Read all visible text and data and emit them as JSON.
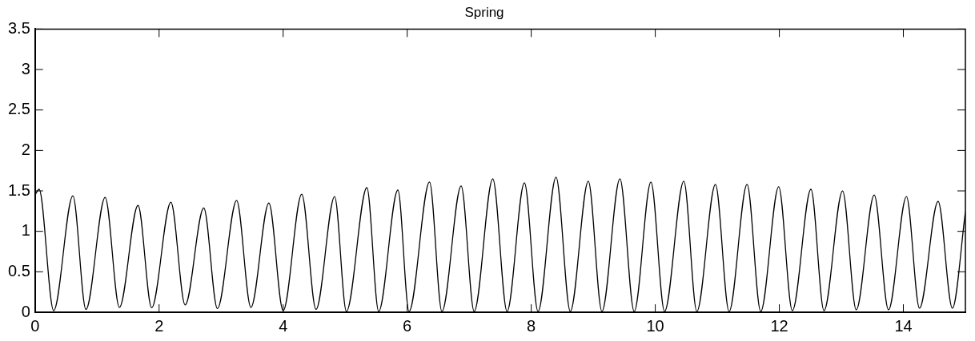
{
  "chart_data": {
    "type": "line",
    "title": "Spring",
    "x": [
      0,
      0.065,
      0.3,
      0.61,
      0.82,
      1.13,
      1.36,
      1.66,
      1.88,
      2.19,
      2.42,
      2.72,
      2.94,
      3.25,
      3.48,
      3.77,
      4.0,
      4.3,
      4.53,
      4.83,
      5.02,
      5.35,
      5.54,
      5.85,
      6.03,
      6.36,
      6.56,
      6.87,
      7.08,
      7.38,
      7.61,
      7.89,
      8.11,
      8.4,
      8.63,
      8.92,
      9.14,
      9.43,
      9.66,
      9.93,
      10.15,
      10.46,
      10.67,
      10.97,
      11.19,
      11.48,
      11.7,
      11.99,
      12.21,
      12.51,
      12.72,
      13.02,
      13.24,
      13.53,
      13.76,
      14.05,
      14.26,
      14.56,
      14.79,
      15
    ],
    "series": [
      {
        "color": "#000000",
        "values": [
          1.45,
          1.52,
          0.02,
          1.44,
          0.035,
          1.42,
          0.06,
          1.32,
          0.056,
          1.36,
          0.09,
          1.29,
          0.046,
          1.38,
          0.06,
          1.35,
          0.02,
          1.46,
          0.035,
          1.43,
          0.01,
          1.54,
          0.01,
          1.51,
          0.01,
          1.61,
          0.01,
          1.56,
          0.01,
          1.65,
          0.01,
          1.6,
          0.01,
          1.67,
          0.01,
          1.62,
          0.01,
          1.65,
          0.01,
          1.61,
          0.01,
          1.62,
          0.01,
          1.58,
          0.01,
          1.58,
          0.01,
          1.55,
          0.02,
          1.52,
          0.02,
          1.5,
          0.03,
          1.45,
          0.03,
          1.43,
          0.05,
          1.37,
          0.05,
          1.24
        ]
      }
    ],
    "xlim": [
      0,
      15
    ],
    "xticks": [
      0,
      2,
      4,
      6,
      8,
      10,
      12,
      14
    ],
    "ylim": [
      0,
      3.5
    ],
    "yticks": [
      0,
      0.5,
      1,
      1.5,
      2,
      2.5,
      3,
      3.5
    ],
    "grid": false,
    "legend": false,
    "marker": "none",
    "line_style": "solid"
  }
}
